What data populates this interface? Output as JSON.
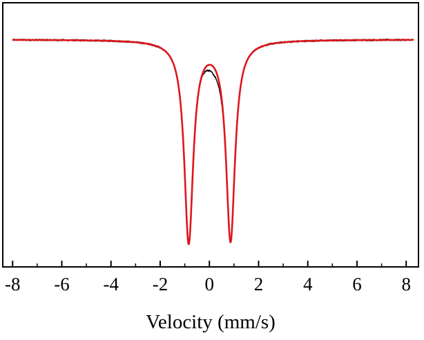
{
  "chart_data": {
    "type": "line",
    "title": "",
    "xlabel": "Velocity (mm/s)",
    "ylabel": "",
    "xlim": [
      -8.4,
      8.5
    ],
    "ylim": [
      0,
      1.05
    ],
    "grid": false,
    "legend": "none",
    "x_ticks": [
      -8,
      -6,
      -4,
      -2,
      0,
      2,
      4,
      6,
      8
    ],
    "x_tick_labels": [
      "-8",
      "-6",
      "-4",
      "-2",
      "0",
      "2",
      "4",
      "6",
      "8"
    ],
    "doublet": {
      "baseline": 1.0,
      "peaks": [
        {
          "center": -0.84,
          "depth": 0.95,
          "hwhm": 0.22
        },
        {
          "center": 0.86,
          "depth": 0.94,
          "hwhm": 0.22
        }
      ]
    },
    "series": [
      {
        "color": "#000000",
        "style": "experimental-noisy",
        "x_start": -8.0,
        "x_end": 8.3,
        "noise": 0.004
      },
      {
        "color": "#e0151b",
        "style": "fit-smooth",
        "x_start": -8.0,
        "x_end": 8.3
      }
    ]
  }
}
